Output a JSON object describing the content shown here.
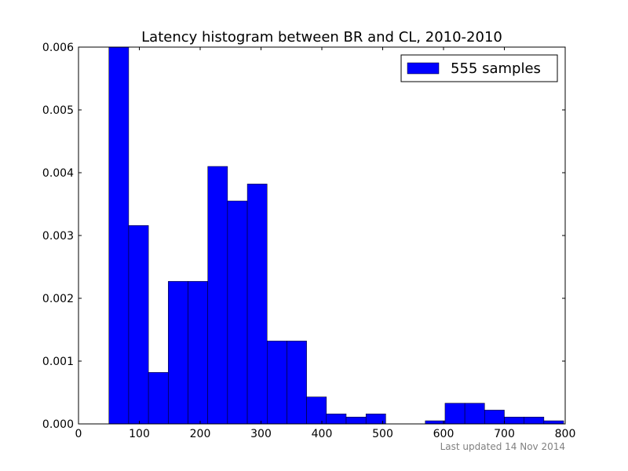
{
  "chart_data": {
    "type": "bar",
    "title": "Latency histogram between BR and CL, 2010-2010",
    "xlabel": "",
    "ylabel": "",
    "xlim": [
      0,
      800
    ],
    "ylim": [
      0,
      0.006
    ],
    "xticks": [
      "0",
      "100",
      "200",
      "300",
      "400",
      "500",
      "600",
      "700",
      "800"
    ],
    "yticks": [
      "0.000",
      "0.001",
      "0.002",
      "0.003",
      "0.004",
      "0.005",
      "0.006"
    ],
    "grid": false,
    "legend_position": "top-right",
    "bin_width": 32.5,
    "series": [
      {
        "name": "555 samples",
        "color": "#0000ff",
        "bin_start": [
          50,
          82.5,
          115,
          147.5,
          180,
          212.5,
          245,
          277.5,
          310,
          342.5,
          375,
          407.5,
          440,
          472.5,
          505,
          537.5,
          570,
          602.5,
          635,
          667.5,
          700,
          732.5,
          765
        ],
        "values": [
          0.006,
          0.00316,
          0.00082,
          0.00227,
          0.00227,
          0.0041,
          0.00355,
          0.00382,
          0.00132,
          0.00132,
          0.00043,
          0.00016,
          0.00011,
          0.00016,
          0,
          0,
          5e-05,
          0.00033,
          0.00033,
          0.00022,
          0.00011,
          0.00011,
          5e-05
        ]
      }
    ]
  },
  "footer": {
    "updated": "Last updated 14 Nov 2014"
  }
}
